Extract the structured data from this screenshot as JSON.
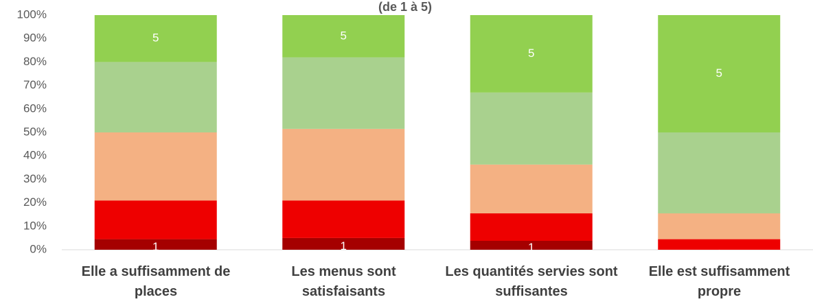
{
  "chart_data": {
    "type": "stacked_bar",
    "title": "(de 1 à 5)",
    "categories": [
      "Elle a suffisamment de places",
      "Les menus sont satisfaisants",
      "Les quantités servies sont suffisantes",
      "Elle est suffisamment propre"
    ],
    "series": [
      {
        "name": "1",
        "color": "#a50000",
        "values": [
          4.5,
          5,
          3.8,
          0
        ]
      },
      {
        "color": "#ee0000",
        "values": [
          16.5,
          16,
          11.7,
          4.5
        ]
      },
      {
        "color": "#f4b183",
        "values": [
          29,
          30.5,
          20.8,
          11
        ]
      },
      {
        "color": "#a9d18e",
        "values": [
          30,
          30.5,
          30.7,
          34.5
        ]
      },
      {
        "name": "5",
        "color": "#92d050",
        "values": [
          20,
          18,
          33,
          50
        ]
      }
    ],
    "ylim": [
      0,
      100
    ],
    "yticks": [
      {
        "value": 0,
        "label": "0%"
      },
      {
        "value": 10,
        "label": "10%"
      },
      {
        "value": 20,
        "label": "20%"
      },
      {
        "value": 30,
        "label": "30%"
      },
      {
        "value": 40,
        "label": "40%"
      },
      {
        "value": 50,
        "label": "50%"
      },
      {
        "value": 60,
        "label": "60%"
      },
      {
        "value": 70,
        "label": "70%"
      },
      {
        "value": 80,
        "label": "80%"
      },
      {
        "value": 90,
        "label": "90%"
      },
      {
        "value": 100,
        "label": "100%"
      }
    ]
  }
}
